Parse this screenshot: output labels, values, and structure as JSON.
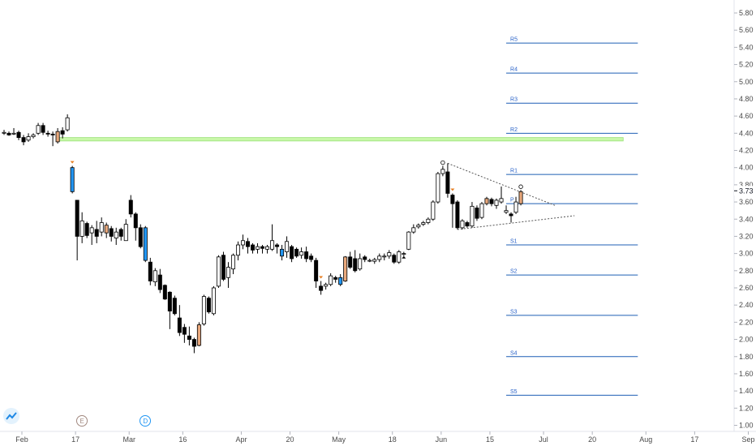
{
  "chart_data": {
    "type": "candlestick",
    "y_ticks": [
      "5.80",
      "5.60",
      "5.40",
      "5.20",
      "5.00",
      "4.80",
      "4.60",
      "4.40",
      "4.20",
      "4.00",
      "3.80",
      "3.60",
      "3.40",
      "3.20",
      "3.00",
      "2.80",
      "2.60",
      "2.40",
      "2.20",
      "2.00",
      "1.80",
      "1.60",
      "1.40",
      "1.20",
      "1.00"
    ],
    "ylim": [
      1.0,
      5.88
    ],
    "x_ticks": [
      {
        "label": "Feb",
        "day": 0
      },
      {
        "label": "17",
        "day": 11
      },
      {
        "label": "Mar",
        "day": 22
      },
      {
        "label": "16",
        "day": 33
      },
      {
        "label": "Apr",
        "day": 45
      },
      {
        "label": "20",
        "day": 55
      },
      {
        "label": "May",
        "day": 65
      },
      {
        "label": "18",
        "day": 76
      },
      {
        "label": "Jun",
        "day": 86
      },
      {
        "label": "15",
        "day": 96
      },
      {
        "label": "Jul",
        "day": 107
      },
      {
        "label": "20",
        "day": 117
      },
      {
        "label": "Aug",
        "day": 128
      },
      {
        "label": "17",
        "day": 138
      },
      {
        "label": "Sep",
        "day": 149
      }
    ],
    "last_price": "3.73",
    "last_price_color": "#131722",
    "colors": {
      "up": "#ffffff",
      "down": "#000000",
      "outline": "#000000",
      "highlight_orange": "#e8a87c",
      "highlight_blue": "#2196f3",
      "pivot_line": "#1f5fb5",
      "zone": "#c8f7a8",
      "trendline": "#9e9e9e"
    },
    "pivot_levels": [
      {
        "name": "R5",
        "value": 5.45
      },
      {
        "name": "R4",
        "value": 5.1
      },
      {
        "name": "R3",
        "value": 4.75
      },
      {
        "name": "R2",
        "value": 4.4
      },
      {
        "name": "R1",
        "value": 3.92
      },
      {
        "name": "P",
        "value": 3.58
      },
      {
        "name": "S1",
        "value": 3.1
      },
      {
        "name": "S2",
        "value": 2.75
      },
      {
        "name": "S3",
        "value": 2.28
      },
      {
        "name": "S4",
        "value": 1.8
      },
      {
        "name": "S5",
        "value": 1.35
      }
    ],
    "pivot_day_range": [
      103,
      130
    ],
    "zone": {
      "low": 4.31,
      "high": 4.35,
      "from_day": 11,
      "to_day": 127
    },
    "triangle_upper": [
      {
        "day": 91,
        "price": 4.05
      },
      {
        "day": 113,
        "price": 3.56
      }
    ],
    "triangle_lower": [
      {
        "day": 93,
        "price": 3.28
      },
      {
        "day": 117,
        "price": 3.44
      }
    ],
    "event_markers": [
      {
        "label": "E",
        "day": 16
      },
      {
        "label": "D",
        "day": 29
      }
    ],
    "candles": [
      {
        "d": 0,
        "o": 4.4,
        "h": 4.44,
        "l": 4.38,
        "c": 4.41
      },
      {
        "d": 1,
        "o": 4.4,
        "h": 4.42,
        "l": 4.37,
        "c": 4.38
      },
      {
        "d": 2,
        "o": 4.39,
        "h": 4.46,
        "l": 4.38,
        "c": 4.4
      },
      {
        "d": 3,
        "o": 4.41,
        "h": 4.43,
        "l": 4.32,
        "c": 4.35
      },
      {
        "d": 4,
        "o": 4.35,
        "h": 4.38,
        "l": 4.26,
        "c": 4.3
      },
      {
        "d": 5,
        "o": 4.32,
        "h": 4.4,
        "l": 4.3,
        "c": 4.36
      },
      {
        "d": 6,
        "o": 4.36,
        "h": 4.4,
        "l": 4.34,
        "c": 4.38
      },
      {
        "d": 7,
        "o": 4.4,
        "h": 4.52,
        "l": 4.38,
        "c": 4.49
      },
      {
        "d": 8,
        "o": 4.49,
        "h": 4.52,
        "l": 4.38,
        "c": 4.41
      },
      {
        "d": 9,
        "o": 4.4,
        "h": 4.43,
        "l": 4.36,
        "c": 4.39
      },
      {
        "d": 10,
        "o": 4.39,
        "h": 4.42,
        "l": 4.25,
        "c": 4.38
      },
      {
        "d": 11,
        "o": 4.3,
        "h": 4.46,
        "l": 4.28,
        "c": 4.42,
        "color": "orange"
      },
      {
        "d": 12,
        "o": 4.43,
        "h": 4.47,
        "l": 4.34,
        "c": 4.39
      },
      {
        "d": 13,
        "o": 4.44,
        "h": 4.62,
        "l": 4.42,
        "c": 4.58
      },
      {
        "d": 14,
        "o": 4.0,
        "h": 4.02,
        "l": 3.7,
        "c": 3.72,
        "color": "blue",
        "marker": "down"
      },
      {
        "d": 15,
        "o": 3.62,
        "h": 3.62,
        "l": 2.92,
        "c": 3.2
      },
      {
        "d": 16,
        "o": 3.2,
        "h": 3.48,
        "l": 3.12,
        "c": 3.38
      },
      {
        "d": 17,
        "o": 3.35,
        "h": 3.37,
        "l": 3.18,
        "c": 3.21
      },
      {
        "d": 18,
        "o": 3.24,
        "h": 3.33,
        "l": 3.1,
        "c": 3.3
      },
      {
        "d": 19,
        "o": 3.28,
        "h": 3.38,
        "l": 3.12,
        "c": 3.2
      },
      {
        "d": 20,
        "o": 3.25,
        "h": 3.42,
        "l": 3.2,
        "c": 3.36
      },
      {
        "d": 21,
        "o": 3.24,
        "h": 3.36,
        "l": 3.18,
        "c": 3.33,
        "color": "orange"
      },
      {
        "d": 22,
        "o": 3.29,
        "h": 3.32,
        "l": 3.14,
        "c": 3.2
      },
      {
        "d": 23,
        "o": 3.18,
        "h": 3.3,
        "l": 3.1,
        "c": 3.25
      },
      {
        "d": 24,
        "o": 3.28,
        "h": 3.3,
        "l": 3.15,
        "c": 3.2
      },
      {
        "d": 25,
        "o": 3.15,
        "h": 3.4,
        "l": 3.15,
        "c": 3.34
      },
      {
        "d": 26,
        "o": 3.62,
        "h": 3.68,
        "l": 3.42,
        "c": 3.46
      },
      {
        "d": 27,
        "o": 3.46,
        "h": 3.48,
        "l": 3.15,
        "c": 3.3
      },
      {
        "d": 28,
        "o": 3.3,
        "h": 3.34,
        "l": 3.06,
        "c": 3.08
      },
      {
        "d": 29,
        "o": 3.3,
        "h": 3.32,
        "l": 2.9,
        "c": 2.92,
        "color": "blue"
      },
      {
        "d": 30,
        "o": 2.9,
        "h": 2.95,
        "l": 2.63,
        "c": 2.68
      },
      {
        "d": 31,
        "o": 2.67,
        "h": 2.83,
        "l": 2.62,
        "c": 2.8
      },
      {
        "d": 32,
        "o": 2.75,
        "h": 2.82,
        "l": 2.54,
        "c": 2.58
      },
      {
        "d": 33,
        "o": 2.63,
        "h": 2.64,
        "l": 2.46,
        "c": 2.47
      },
      {
        "d": 34,
        "o": 2.55,
        "h": 2.56,
        "l": 2.12,
        "c": 2.33
      },
      {
        "d": 35,
        "o": 2.48,
        "h": 2.51,
        "l": 2.28,
        "c": 2.3
      },
      {
        "d": 36,
        "o": 2.25,
        "h": 2.4,
        "l": 2.04,
        "c": 2.08
      },
      {
        "d": 37,
        "o": 2.14,
        "h": 2.18,
        "l": 1.96,
        "c": 2.06
      },
      {
        "d": 38,
        "o": 2.04,
        "h": 2.15,
        "l": 1.93,
        "c": 2.0
      },
      {
        "d": 39,
        "o": 2.0,
        "h": 2.02,
        "l": 1.84,
        "c": 1.92
      },
      {
        "d": 40,
        "o": 1.93,
        "h": 2.2,
        "l": 1.92,
        "c": 2.17,
        "color": "orange"
      },
      {
        "d": 41,
        "o": 2.18,
        "h": 2.52,
        "l": 2.16,
        "c": 2.5
      },
      {
        "d": 42,
        "o": 2.48,
        "h": 2.5,
        "l": 2.3,
        "c": 2.32
      },
      {
        "d": 43,
        "o": 2.3,
        "h": 2.62,
        "l": 2.28,
        "c": 2.6
      },
      {
        "d": 44,
        "o": 2.62,
        "h": 2.98,
        "l": 2.6,
        "c": 2.96
      },
      {
        "d": 45,
        "o": 2.98,
        "h": 3.02,
        "l": 2.68,
        "c": 2.7
      },
      {
        "d": 46,
        "o": 2.72,
        "h": 2.9,
        "l": 2.6,
        "c": 2.84
      },
      {
        "d": 47,
        "o": 2.82,
        "h": 3.0,
        "l": 2.76,
        "c": 2.98
      },
      {
        "d": 48,
        "o": 2.98,
        "h": 3.14,
        "l": 2.92,
        "c": 3.1
      },
      {
        "d": 49,
        "o": 3.1,
        "h": 3.22,
        "l": 3.05,
        "c": 3.15
      },
      {
        "d": 50,
        "o": 3.14,
        "h": 3.18,
        "l": 3.0,
        "c": 3.08
      },
      {
        "d": 51,
        "o": 3.1,
        "h": 3.12,
        "l": 3.0,
        "c": 3.04
      },
      {
        "d": 52,
        "o": 3.05,
        "h": 3.12,
        "l": 3.0,
        "c": 3.08
      },
      {
        "d": 53,
        "o": 3.08,
        "h": 3.1,
        "l": 3.0,
        "c": 3.06
      },
      {
        "d": 54,
        "o": 3.05,
        "h": 3.1,
        "l": 3.0,
        "c": 3.08
      },
      {
        "d": 55,
        "o": 3.05,
        "h": 3.34,
        "l": 3.03,
        "c": 3.15
      },
      {
        "d": 56,
        "o": 3.1,
        "h": 3.12,
        "l": 3.0,
        "c": 3.08
      },
      {
        "d": 57,
        "o": 3.05,
        "h": 3.1,
        "l": 2.92,
        "c": 2.97,
        "color": "blue"
      },
      {
        "d": 58,
        "o": 3.02,
        "h": 3.2,
        "l": 2.95,
        "c": 3.14
      },
      {
        "d": 59,
        "o": 3.08,
        "h": 3.1,
        "l": 2.9,
        "c": 2.94
      },
      {
        "d": 60,
        "o": 3.05,
        "h": 3.07,
        "l": 2.95,
        "c": 2.97
      },
      {
        "d": 61,
        "o": 2.98,
        "h": 3.07,
        "l": 2.94,
        "c": 3.02
      },
      {
        "d": 62,
        "o": 3.02,
        "h": 3.08,
        "l": 2.9,
        "c": 2.94
      },
      {
        "d": 63,
        "o": 2.97,
        "h": 3.0,
        "l": 2.9,
        "c": 2.93
      },
      {
        "d": 64,
        "o": 2.92,
        "h": 2.95,
        "l": 2.6,
        "c": 2.68
      },
      {
        "d": 65,
        "o": 2.62,
        "h": 2.68,
        "l": 2.52,
        "c": 2.57,
        "marker": "down"
      },
      {
        "d": 66,
        "o": 2.62,
        "h": 2.66,
        "l": 2.58,
        "c": 2.64
      },
      {
        "d": 67,
        "o": 2.64,
        "h": 2.77,
        "l": 2.62,
        "c": 2.74
      },
      {
        "d": 68,
        "o": 2.72,
        "h": 2.74,
        "l": 2.66,
        "c": 2.7
      },
      {
        "d": 69,
        "o": 2.72,
        "h": 2.76,
        "l": 2.62,
        "c": 2.64,
        "color": "blue"
      },
      {
        "d": 70,
        "o": 2.68,
        "h": 2.97,
        "l": 2.67,
        "c": 2.96,
        "color": "orange"
      },
      {
        "d": 71,
        "o": 2.96,
        "h": 3.02,
        "l": 2.82,
        "c": 2.84
      },
      {
        "d": 72,
        "o": 2.94,
        "h": 3.04,
        "l": 2.78,
        "c": 2.8
      },
      {
        "d": 73,
        "o": 2.82,
        "h": 3.0,
        "l": 2.8,
        "c": 2.94
      },
      {
        "d": 74,
        "o": 2.96,
        "h": 2.98,
        "l": 2.9,
        "c": 2.93
      },
      {
        "d": 75,
        "o": 2.92,
        "h": 2.94,
        "l": 2.9,
        "c": 2.92
      },
      {
        "d": 76,
        "o": 2.91,
        "h": 2.95,
        "l": 2.88,
        "c": 2.93
      },
      {
        "d": 77,
        "o": 2.93,
        "h": 3.0,
        "l": 2.9,
        "c": 2.97
      },
      {
        "d": 78,
        "o": 2.96,
        "h": 3.0,
        "l": 2.92,
        "c": 2.97
      },
      {
        "d": 79,
        "o": 2.97,
        "h": 3.04,
        "l": 2.94,
        "c": 3.01
      },
      {
        "d": 80,
        "o": 2.98,
        "h": 3.0,
        "l": 2.88,
        "c": 2.9
      },
      {
        "d": 81,
        "o": 2.9,
        "h": 3.04,
        "l": 2.88,
        "c": 3.02
      },
      {
        "d": 82,
        "o": 2.99,
        "h": 3.02,
        "l": 2.97,
        "c": 3.0,
        "marker": "up"
      },
      {
        "d": 83,
        "o": 3.05,
        "h": 3.26,
        "l": 3.04,
        "c": 3.25
      },
      {
        "d": 84,
        "o": 3.25,
        "h": 3.34,
        "l": 3.23,
        "c": 3.3
      },
      {
        "d": 85,
        "o": 3.31,
        "h": 3.35,
        "l": 3.29,
        "c": 3.33
      },
      {
        "d": 86,
        "o": 3.34,
        "h": 3.38,
        "l": 3.32,
        "c": 3.36
      },
      {
        "d": 87,
        "o": 3.36,
        "h": 3.42,
        "l": 3.34,
        "c": 3.4
      },
      {
        "d": 88,
        "o": 3.4,
        "h": 3.62,
        "l": 3.38,
        "c": 3.6
      },
      {
        "d": 89,
        "o": 3.6,
        "h": 3.95,
        "l": 3.58,
        "c": 3.93
      },
      {
        "d": 90,
        "o": 3.93,
        "h": 4.02,
        "l": 3.9,
        "c": 3.98,
        "marker": "circle"
      },
      {
        "d": 91,
        "o": 3.95,
        "h": 4.05,
        "l": 3.65,
        "c": 3.7
      },
      {
        "d": 92,
        "o": 3.68,
        "h": 3.7,
        "l": 3.3,
        "c": 3.58,
        "marker": "down"
      },
      {
        "d": 93,
        "o": 3.6,
        "h": 3.62,
        "l": 3.28,
        "c": 3.3
      },
      {
        "d": 94,
        "o": 3.3,
        "h": 3.4,
        "l": 3.28,
        "c": 3.38
      },
      {
        "d": 95,
        "o": 3.36,
        "h": 3.38,
        "l": 3.3,
        "c": 3.32
      },
      {
        "d": 96,
        "o": 3.32,
        "h": 3.6,
        "l": 3.3,
        "c": 3.55
      },
      {
        "d": 97,
        "o": 3.53,
        "h": 3.56,
        "l": 3.38,
        "c": 3.41
      },
      {
        "d": 98,
        "o": 3.42,
        "h": 3.6,
        "l": 3.4,
        "c": 3.58
      },
      {
        "d": 99,
        "o": 3.58,
        "h": 3.66,
        "l": 3.56,
        "c": 3.64,
        "color": "orange"
      },
      {
        "d": 100,
        "o": 3.63,
        "h": 3.65,
        "l": 3.55,
        "c": 3.58
      },
      {
        "d": 101,
        "o": 3.56,
        "h": 3.64,
        "l": 3.52,
        "c": 3.62
      },
      {
        "d": 102,
        "o": 3.6,
        "h": 3.78,
        "l": 3.58,
        "c": 3.64
      },
      {
        "d": 103,
        "o": 3.48,
        "h": 3.56,
        "l": 3.46,
        "c": 3.5
      },
      {
        "d": 104,
        "o": 3.46,
        "h": 3.48,
        "l": 3.36,
        "c": 3.44
      },
      {
        "d": 105,
        "o": 3.48,
        "h": 3.66,
        "l": 3.46,
        "c": 3.6
      },
      {
        "d": 106,
        "o": 3.58,
        "h": 3.74,
        "l": 3.56,
        "c": 3.72,
        "color": "orange",
        "marker": "circle"
      }
    ]
  }
}
